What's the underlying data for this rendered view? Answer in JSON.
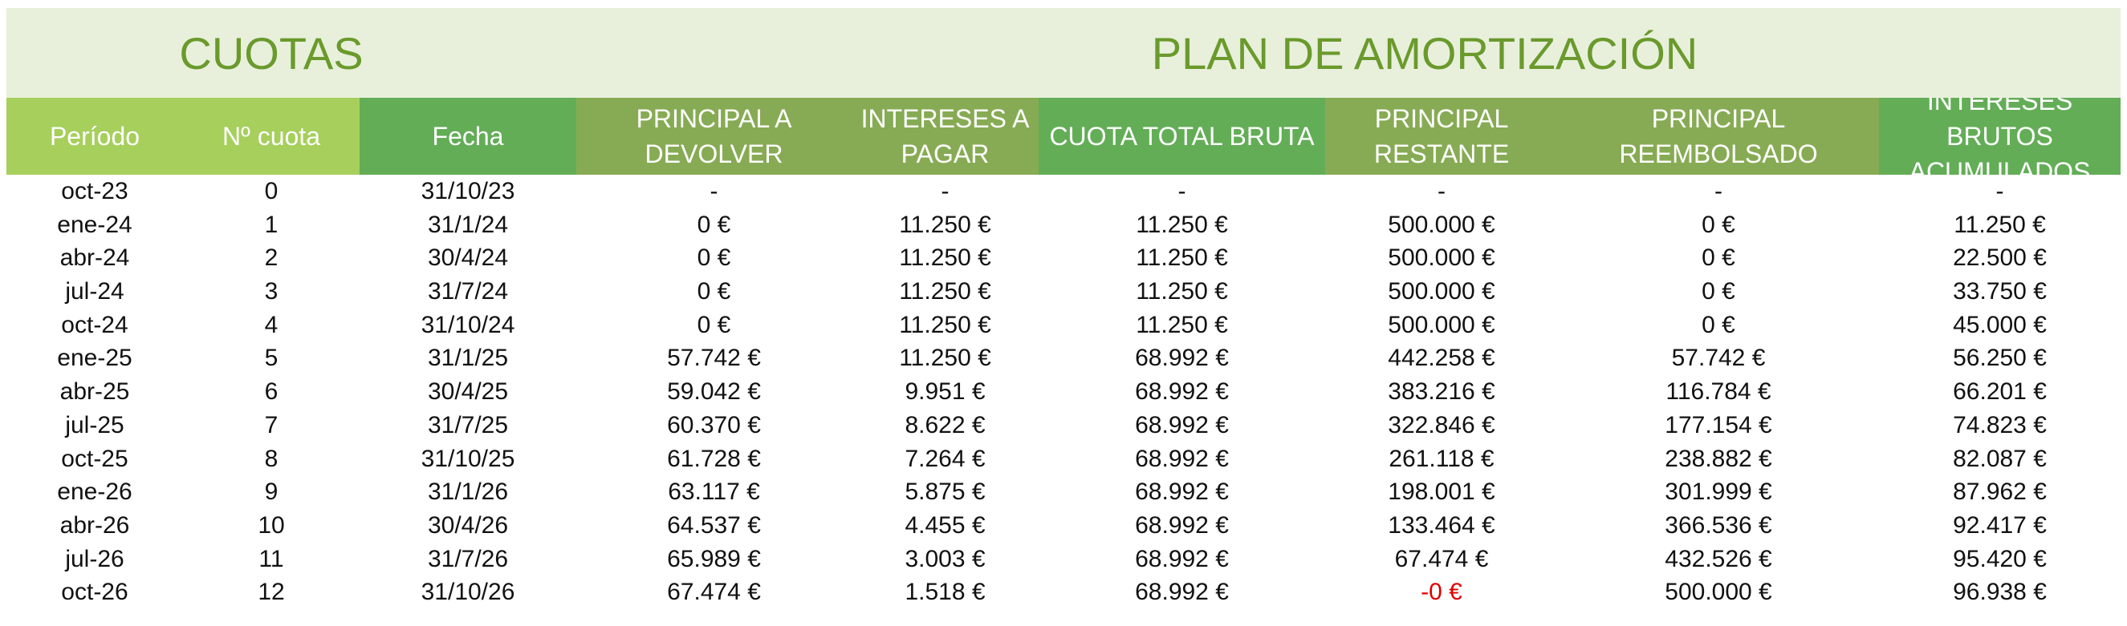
{
  "titles": {
    "left": "CUOTAS",
    "right": "PLAN DE AMORTIZACIÓN"
  },
  "header": [
    {
      "label": "Período",
      "color": "#a6cf5c"
    },
    {
      "label": "Nº cuota",
      "color": "#a6cf5c"
    },
    {
      "label": "Fecha",
      "color": "#63ad57"
    },
    {
      "label": "PRINCIPAL A\nDEVOLVER",
      "color": "#87ab54"
    },
    {
      "label": "INTERESES A\nPAGAR",
      "color": "#87ab54"
    },
    {
      "label": "CUOTA TOTAL BRUTA",
      "color": "#63ad57"
    },
    {
      "label": "PRINCIPAL\nRESTANTE",
      "color": "#87ab54"
    },
    {
      "label": "PRINCIPAL\nREEMBOLSADO",
      "color": "#87ab54"
    },
    {
      "label": "INTERESES BRUTOS\nACUMULADOS",
      "color": "#63ad57"
    }
  ],
  "negative_color": "#e00000",
  "rows": [
    [
      "oct-23",
      "0",
      "31/10/23",
      "-",
      "-",
      "-",
      "-",
      "-",
      "-"
    ],
    [
      "ene-24",
      "1",
      "31/1/24",
      "0 €",
      "11.250 €",
      "11.250 €",
      "500.000 €",
      "0 €",
      "11.250 €"
    ],
    [
      "abr-24",
      "2",
      "30/4/24",
      "0 €",
      "11.250 €",
      "11.250 €",
      "500.000 €",
      "0 €",
      "22.500 €"
    ],
    [
      "jul-24",
      "3",
      "31/7/24",
      "0 €",
      "11.250 €",
      "11.250 €",
      "500.000 €",
      "0 €",
      "33.750 €"
    ],
    [
      "oct-24",
      "4",
      "31/10/24",
      "0 €",
      "11.250 €",
      "11.250 €",
      "500.000 €",
      "0 €",
      "45.000 €"
    ],
    [
      "ene-25",
      "5",
      "31/1/25",
      "57.742 €",
      "11.250 €",
      "68.992 €",
      "442.258 €",
      "57.742 €",
      "56.250 €"
    ],
    [
      "abr-25",
      "6",
      "30/4/25",
      "59.042 €",
      "9.951 €",
      "68.992 €",
      "383.216 €",
      "116.784 €",
      "66.201 €"
    ],
    [
      "jul-25",
      "7",
      "31/7/25",
      "60.370 €",
      "8.622 €",
      "68.992 €",
      "322.846 €",
      "177.154 €",
      "74.823 €"
    ],
    [
      "oct-25",
      "8",
      "31/10/25",
      "61.728 €",
      "7.264 €",
      "68.992 €",
      "261.118 €",
      "238.882 €",
      "82.087 €"
    ],
    [
      "ene-26",
      "9",
      "31/1/26",
      "63.117 €",
      "5.875 €",
      "68.992 €",
      "198.001 €",
      "301.999 €",
      "87.962 €"
    ],
    [
      "abr-26",
      "10",
      "30/4/26",
      "64.537 €",
      "4.455 €",
      "68.992 €",
      "133.464 €",
      "366.536 €",
      "92.417 €"
    ],
    [
      "jul-26",
      "11",
      "31/7/26",
      "65.989 €",
      "3.003 €",
      "68.992 €",
      "67.474 €",
      "432.526 €",
      "95.420 €"
    ],
    [
      "oct-26",
      "12",
      "31/10/26",
      "67.474 €",
      "1.518 €",
      "68.992 €",
      "-0 €",
      "500.000 €",
      "96.938 €"
    ]
  ]
}
